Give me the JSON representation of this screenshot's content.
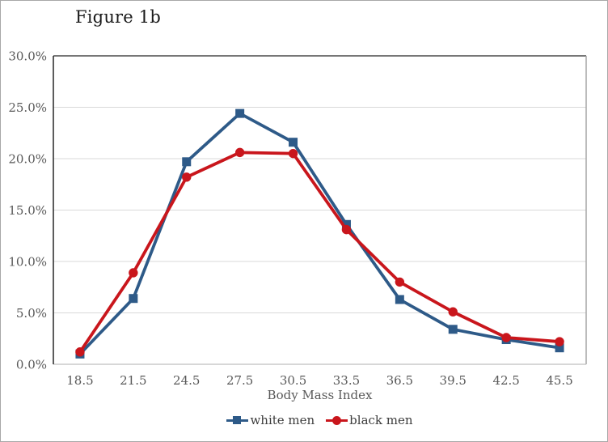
{
  "figure": {
    "title": "Figure 1b",
    "xlabel": "Body Mass Index"
  },
  "legend": {
    "items": [
      {
        "label": "white men",
        "marker": "square",
        "color": "#2e5a88"
      },
      {
        "label": "black men",
        "marker": "circle",
        "color": "#c9161c"
      }
    ]
  },
  "colors": {
    "white_men": "#2e5a88",
    "black_men": "#c9161c",
    "gridline": "#d9d9d9",
    "axis_dark": "#262626",
    "border_right": "#a6a6a6",
    "axis_bottom": "#bfbfbf",
    "tick_label": "#595959",
    "title_text": "#1a1a1a",
    "legend_text": "#3d3d3d"
  },
  "chart_data": {
    "type": "line",
    "title": "Figure 1b",
    "xlabel": "Body Mass Index",
    "ylabel": "",
    "categories": [
      "18.5",
      "21.5",
      "24.5",
      "27.5",
      "30.5",
      "33.5",
      "36.5",
      "39.5",
      "42.5",
      "45.5"
    ],
    "series": [
      {
        "name": "white men",
        "marker": "square",
        "color": "#2e5a88",
        "values": [
          1.0,
          6.4,
          19.7,
          24.4,
          21.6,
          13.6,
          6.3,
          3.4,
          2.4,
          1.6
        ]
      },
      {
        "name": "black men",
        "marker": "circle",
        "color": "#c9161c",
        "values": [
          1.2,
          8.9,
          18.2,
          20.6,
          20.5,
          13.1,
          8.0,
          5.1,
          2.6,
          2.2
        ]
      }
    ],
    "ylim": [
      0,
      30
    ],
    "ytick_step": 5,
    "yticks": [
      "0.0%",
      "5.0%",
      "10.0%",
      "15.0%",
      "20.0%",
      "25.0%",
      "30.0%"
    ],
    "grid": true,
    "legend_position": "bottom"
  }
}
